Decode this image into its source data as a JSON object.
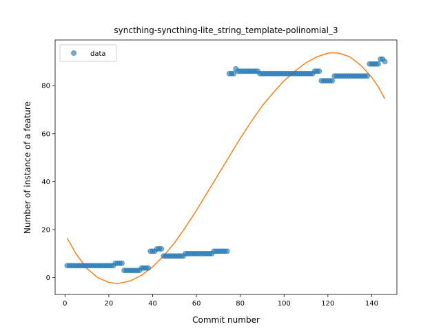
{
  "chart_data": {
    "type": "scatter",
    "title": "syncthing-syncthing-lite_string_template-polinomial_3",
    "xlabel": "Commit number",
    "ylabel": "Number of instance of a feature",
    "xlim": [
      -4.5,
      151.5
    ],
    "ylim": [
      -7,
      99
    ],
    "xticks": [
      0,
      20,
      40,
      60,
      80,
      100,
      120,
      140
    ],
    "yticks": [
      0,
      20,
      40,
      60,
      80
    ],
    "grid": false,
    "legend": {
      "placement": "top-left",
      "entries": [
        "data"
      ]
    },
    "colors": {
      "data": "#1f77b4",
      "fit": "#ff7f0e"
    },
    "series": [
      {
        "name": "data",
        "kind": "scatter",
        "points": [
          [
            1,
            5
          ],
          [
            2,
            5
          ],
          [
            3,
            5
          ],
          [
            4,
            5
          ],
          [
            5,
            5
          ],
          [
            6,
            5
          ],
          [
            7,
            5
          ],
          [
            8,
            5
          ],
          [
            9,
            5
          ],
          [
            10,
            5
          ],
          [
            11,
            5
          ],
          [
            12,
            5
          ],
          [
            13,
            5
          ],
          [
            14,
            5
          ],
          [
            15,
            5
          ],
          [
            16,
            5
          ],
          [
            17,
            5
          ],
          [
            18,
            5
          ],
          [
            19,
            5
          ],
          [
            20,
            5
          ],
          [
            21,
            5
          ],
          [
            22,
            5
          ],
          [
            23,
            6
          ],
          [
            24,
            6
          ],
          [
            25,
            6
          ],
          [
            26,
            6
          ],
          [
            27,
            3
          ],
          [
            28,
            3
          ],
          [
            29,
            3
          ],
          [
            30,
            3
          ],
          [
            31,
            3
          ],
          [
            32,
            3
          ],
          [
            33,
            3
          ],
          [
            34,
            3
          ],
          [
            35,
            4
          ],
          [
            36,
            4
          ],
          [
            37,
            4
          ],
          [
            38,
            4
          ],
          [
            39,
            11
          ],
          [
            40,
            11
          ],
          [
            41,
            11
          ],
          [
            42,
            12
          ],
          [
            43,
            12
          ],
          [
            44,
            12
          ],
          [
            45,
            9
          ],
          [
            46,
            9
          ],
          [
            47,
            9
          ],
          [
            48,
            9
          ],
          [
            49,
            9
          ],
          [
            50,
            9
          ],
          [
            51,
            9
          ],
          [
            52,
            9
          ],
          [
            53,
            9
          ],
          [
            54,
            9
          ],
          [
            55,
            10
          ],
          [
            56,
            10
          ],
          [
            57,
            10
          ],
          [
            58,
            10
          ],
          [
            59,
            10
          ],
          [
            60,
            10
          ],
          [
            61,
            10
          ],
          [
            62,
            10
          ],
          [
            63,
            10
          ],
          [
            64,
            10
          ],
          [
            65,
            10
          ],
          [
            66,
            10
          ],
          [
            67,
            10
          ],
          [
            68,
            11
          ],
          [
            69,
            11
          ],
          [
            70,
            11
          ],
          [
            71,
            11
          ],
          [
            72,
            11
          ],
          [
            73,
            11
          ],
          [
            74,
            11
          ],
          [
            75,
            85
          ],
          [
            76,
            85
          ],
          [
            77,
            85
          ],
          [
            78,
            87
          ],
          [
            79,
            86
          ],
          [
            80,
            86
          ],
          [
            81,
            86
          ],
          [
            82,
            86
          ],
          [
            83,
            86
          ],
          [
            84,
            86
          ],
          [
            85,
            86
          ],
          [
            86,
            86
          ],
          [
            87,
            86
          ],
          [
            88,
            86
          ],
          [
            89,
            85
          ],
          [
            90,
            85
          ],
          [
            91,
            85
          ],
          [
            92,
            85
          ],
          [
            93,
            85
          ],
          [
            94,
            85
          ],
          [
            95,
            85
          ],
          [
            96,
            85
          ],
          [
            97,
            85
          ],
          [
            98,
            85
          ],
          [
            99,
            85
          ],
          [
            100,
            85
          ],
          [
            101,
            85
          ],
          [
            102,
            85
          ],
          [
            103,
            85
          ],
          [
            104,
            85
          ],
          [
            105,
            85
          ],
          [
            106,
            85
          ],
          [
            107,
            85
          ],
          [
            108,
            85
          ],
          [
            109,
            85
          ],
          [
            110,
            85
          ],
          [
            111,
            85
          ],
          [
            112,
            85
          ],
          [
            113,
            85
          ],
          [
            114,
            86
          ],
          [
            115,
            86
          ],
          [
            116,
            86
          ],
          [
            117,
            82
          ],
          [
            118,
            82
          ],
          [
            119,
            82
          ],
          [
            120,
            82
          ],
          [
            121,
            82
          ],
          [
            122,
            82
          ],
          [
            123,
            84
          ],
          [
            124,
            84
          ],
          [
            125,
            84
          ],
          [
            126,
            84
          ],
          [
            127,
            84
          ],
          [
            128,
            84
          ],
          [
            129,
            84
          ],
          [
            130,
            84
          ],
          [
            131,
            84
          ],
          [
            132,
            84
          ],
          [
            133,
            84
          ],
          [
            134,
            84
          ],
          [
            135,
            84
          ],
          [
            136,
            84
          ],
          [
            137,
            84
          ],
          [
            138,
            84
          ],
          [
            139,
            89
          ],
          [
            140,
            89
          ],
          [
            141,
            89
          ],
          [
            142,
            89
          ],
          [
            143,
            89
          ],
          [
            144,
            91
          ],
          [
            145,
            91
          ],
          [
            146,
            90
          ]
        ]
      },
      {
        "kind": "line",
        "points": [
          [
            1,
            16.5
          ],
          [
            5,
            10.0
          ],
          [
            10,
            3.8
          ],
          [
            15,
            0.0
          ],
          [
            20,
            -2.0
          ],
          [
            24,
            -2.5
          ],
          [
            30,
            -1.3
          ],
          [
            35,
            1.0
          ],
          [
            40,
            4.5
          ],
          [
            45,
            9.0
          ],
          [
            50,
            14.5
          ],
          [
            55,
            21.0
          ],
          [
            60,
            28.0
          ],
          [
            65,
            35.5
          ],
          [
            70,
            43.0
          ],
          [
            75,
            50.5
          ],
          [
            80,
            58.0
          ],
          [
            85,
            65.0
          ],
          [
            90,
            71.5
          ],
          [
            95,
            77.0
          ],
          [
            100,
            82.0
          ],
          [
            105,
            86.0
          ],
          [
            110,
            89.5
          ],
          [
            115,
            92.0
          ],
          [
            120,
            93.5
          ],
          [
            122,
            93.7
          ],
          [
            125,
            93.5
          ],
          [
            130,
            92.0
          ],
          [
            135,
            88.5
          ],
          [
            140,
            83.5
          ],
          [
            143,
            79.5
          ],
          [
            146,
            74.5
          ]
        ]
      }
    ]
  }
}
